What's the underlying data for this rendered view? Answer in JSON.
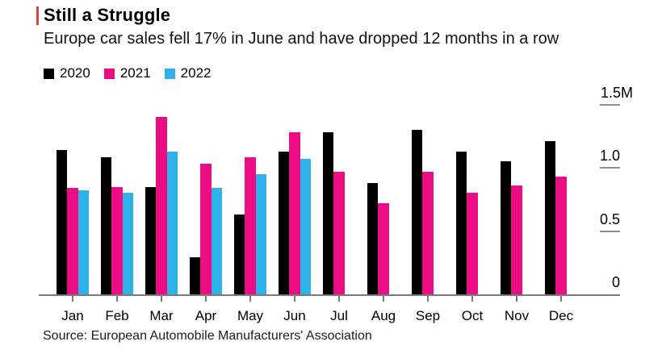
{
  "header": {
    "title": "Still a Struggle",
    "subtitle": "Europe car sales fell 17% in June and have dropped 12 months in a row"
  },
  "source_line": "Source: European Automobile Manufacturers' Association",
  "colors": {
    "accent_red": "#d8453a",
    "series_2020": "#000000",
    "series_2021": "#ec0d84",
    "series_2022": "#2fb1ea",
    "axis_gray": "#7a7a7a",
    "text_black": "#000000"
  },
  "chart_data": {
    "type": "bar",
    "title": "Still a Struggle",
    "subtitle": "Europe car sales fell 17% in June and have dropped 12 months in a row",
    "unit": "millions of cars",
    "categories": [
      "Jan",
      "Feb",
      "Mar",
      "Apr",
      "May",
      "Jun",
      "Jul",
      "Aug",
      "Sep",
      "Oct",
      "Nov",
      "Dec"
    ],
    "series": [
      {
        "name": "2020",
        "color": "#000000",
        "values": [
          1.14,
          1.08,
          0.85,
          0.29,
          0.63,
          1.13,
          1.28,
          0.88,
          1.3,
          1.13,
          1.05,
          1.21
        ]
      },
      {
        "name": "2021",
        "color": "#ec0d84",
        "values": [
          0.84,
          0.85,
          1.4,
          1.03,
          1.08,
          1.28,
          0.97,
          0.72,
          0.97,
          0.8,
          0.86,
          0.93
        ]
      },
      {
        "name": "2022",
        "color": "#2fb1ea",
        "values": [
          0.82,
          0.8,
          1.13,
          0.84,
          0.95,
          1.07,
          null,
          null,
          null,
          null,
          null,
          null
        ]
      }
    ],
    "ylim": [
      0,
      1.5
    ],
    "yticks": [
      {
        "label": "1.5M",
        "value": 1.5
      },
      {
        "label": "1.0",
        "value": 1.0
      },
      {
        "label": "0.5",
        "value": 0.5
      },
      {
        "label": "0",
        "value": 0
      }
    ],
    "legend_position": "top-left",
    "grid": false,
    "source": "Source: European Automobile Manufacturers' Association"
  }
}
